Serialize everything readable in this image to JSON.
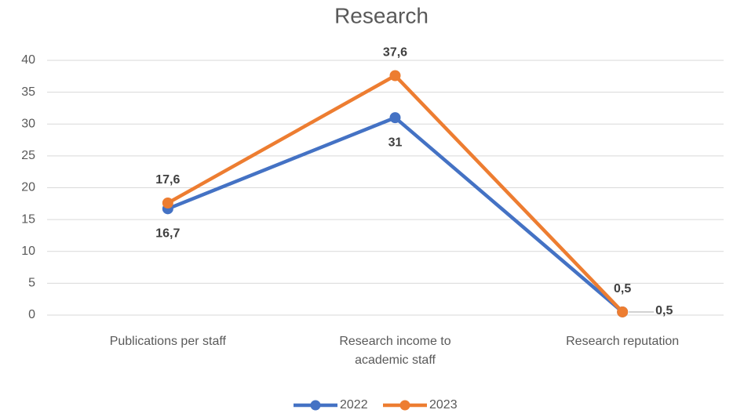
{
  "chart_data": {
    "type": "line",
    "title": "Research",
    "categories": [
      "Publications per staff",
      "Research income to academic staff",
      "Research reputation"
    ],
    "series": [
      {
        "name": "2022",
        "color": "#4472c4",
        "values": [
          16.7,
          31,
          0.5
        ],
        "value_labels": [
          "16,7",
          "31",
          "0,5"
        ]
      },
      {
        "name": "2023",
        "color": "#ed7d31",
        "values": [
          17.6,
          37.6,
          0.5
        ],
        "value_labels": [
          "17,6",
          "37,6",
          "0,5"
        ]
      }
    ],
    "ylim": [
      0,
      40
    ],
    "yticks": [
      0,
      5,
      10,
      15,
      20,
      25,
      30,
      35,
      40
    ],
    "grid": true,
    "legend": "bottom"
  }
}
